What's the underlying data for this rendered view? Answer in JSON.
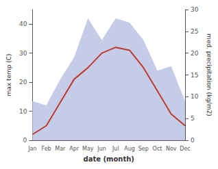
{
  "chart_data": {
    "type": "line",
    "categories": [
      "Jan",
      "Feb",
      "Mar",
      "Apr",
      "May",
      "Jun",
      "Jul",
      "Aug",
      "Sep",
      "Oct",
      "Nov",
      "Dec"
    ],
    "series": [
      {
        "type": "area",
        "axis": "y2",
        "color": "#c5cce8",
        "values": [
          9,
          8,
          14,
          19,
          28,
          23,
          28,
          27,
          23,
          16,
          17,
          9
        ]
      },
      {
        "type": "line",
        "color": "#c0392b",
        "values": [
          2,
          5,
          13,
          21,
          25,
          30,
          32,
          31,
          25,
          17,
          9,
          5
        ]
      }
    ],
    "xlabel": "date (month)",
    "ylabel": "max temp (C)",
    "y2label": "med. precipitation (kg/m2)",
    "ylim": [
      0,
      45
    ],
    "yticks": [
      0,
      10,
      20,
      30,
      40
    ],
    "y2lim": [
      0,
      30
    ],
    "y2ticks": [
      0,
      5,
      10,
      15,
      20,
      25,
      30
    ],
    "grid": false
  }
}
